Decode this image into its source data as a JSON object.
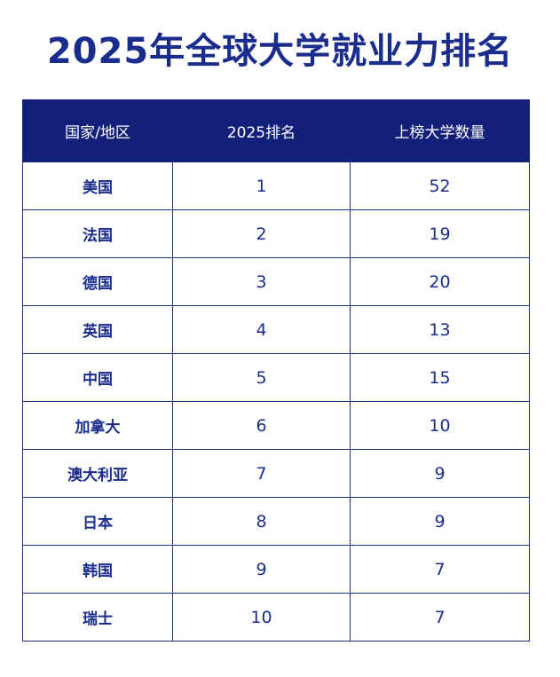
{
  "title": "2025年全球大学就业力排名",
  "colors": {
    "title": "#1b2d8c",
    "header_bg": "#13207a",
    "header_text": "#ffffff",
    "cell_text": "#1b2d8c",
    "border": "#1f2f88"
  },
  "chart_data": {
    "type": "table",
    "title": "2025年全球大学就业力排名",
    "columns": [
      "国家/地区",
      "2025排名",
      "上榜大学数量"
    ],
    "rows": [
      {
        "country": "美国",
        "rank": "1",
        "count": "52"
      },
      {
        "country": "法国",
        "rank": "2",
        "count": "19"
      },
      {
        "country": "德国",
        "rank": "3",
        "count": "20"
      },
      {
        "country": "英国",
        "rank": "4",
        "count": "13"
      },
      {
        "country": "中国",
        "rank": "5",
        "count": "15"
      },
      {
        "country": "加拿大",
        "rank": "6",
        "count": "10"
      },
      {
        "country": "澳大利亚",
        "rank": "7",
        "count": "9"
      },
      {
        "country": "日本",
        "rank": "8",
        "count": "9"
      },
      {
        "country": "韩国",
        "rank": "9",
        "count": "7"
      },
      {
        "country": "瑞士",
        "rank": "10",
        "count": "7"
      }
    ]
  }
}
